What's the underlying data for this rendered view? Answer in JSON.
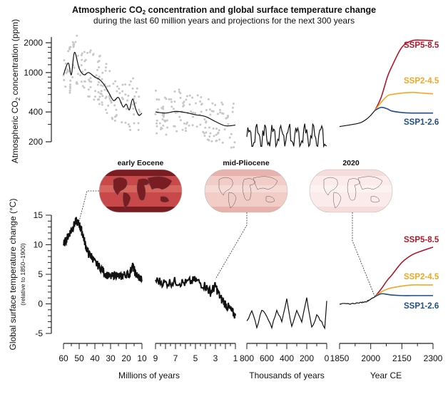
{
  "header": {
    "title_pre": "Atmospheric CO",
    "title_sub": "2",
    "title_post": " concentration and global surface temperature change",
    "subtitle": "during the last 60 million years and projections for the next 300 years"
  },
  "colors": {
    "ssp585": "#b2182b",
    "ssp245": "#f5a623",
    "ssp126": "#1f4e8c",
    "data_line": "#111111",
    "scatter": "#c8c8c8"
  },
  "maps": [
    {
      "label": "early Eocene",
      "palette": [
        "#7a1d22",
        "#c9484a",
        "#e07a6e"
      ]
    },
    {
      "label": "mid-Pliocene",
      "palette": [
        "#e8b2ad",
        "#f2cdc8",
        "#f8e3e0"
      ]
    },
    {
      "label": "2020",
      "palette": [
        "#f6dcda",
        "#fbeceb",
        "#fdf6f5"
      ]
    }
  ],
  "chart_data": [
    {
      "type": "line",
      "panel": "co2",
      "title": "Atmospheric CO2 concentration",
      "ylabel_pre": "Atmospheric CO",
      "ylabel_sub": "2",
      "ylabel_post": " concentration (ppm)",
      "yscale": "log",
      "ylim": [
        200,
        2300
      ],
      "yticks": [
        200,
        400,
        1000,
        2000
      ],
      "yticks_minor": [
        300,
        500,
        600,
        700,
        800,
        900,
        1200,
        1400,
        1600,
        1800
      ],
      "segments": [
        {
          "name": "Millions of years (60-10)",
          "x": [
            60,
            57,
            55,
            53,
            50,
            47,
            44,
            40,
            37,
            34,
            31,
            28,
            25,
            22,
            20,
            18,
            16,
            14,
            12,
            10
          ],
          "values": [
            950,
            1250,
            950,
            1600,
            1100,
            950,
            1000,
            900,
            850,
            750,
            620,
            520,
            560,
            450,
            480,
            420,
            540,
            430,
            370,
            390
          ]
        },
        {
          "name": "Millions of years (9-1)",
          "x": [
            9,
            8,
            7,
            6,
            5,
            4,
            3,
            2,
            1
          ],
          "values": [
            400,
            390,
            405,
            395,
            375,
            360,
            320,
            290,
            295
          ]
        },
        {
          "name": "Thousands of years (800-0)",
          "x": [
            800,
            700,
            600,
            500,
            400,
            300,
            200,
            100,
            0
          ],
          "values": [
            250,
            190,
            270,
            200,
            280,
            190,
            290,
            200,
            280
          ]
        },
        {
          "name": "Year CE historical",
          "x": [
            1850,
            1900,
            1950,
            1980,
            2000,
            2020
          ],
          "values": [
            285,
            296,
            311,
            339,
            370,
            414
          ]
        }
      ],
      "scenarios": [
        {
          "name": "SSP5-8.5",
          "x": [
            2020,
            2050,
            2080,
            2100,
            2150,
            2200,
            2250,
            2300
          ],
          "values": [
            414,
            560,
            900,
            1130,
            1800,
            2100,
            2120,
            2100
          ]
        },
        {
          "name": "SSP2-4.5",
          "x": [
            2020,
            2050,
            2080,
            2100,
            2150,
            2200,
            2250,
            2300
          ],
          "values": [
            414,
            500,
            580,
            600,
            620,
            630,
            620,
            610
          ]
        },
        {
          "name": "SSP1-2.6",
          "x": [
            2020,
            2050,
            2080,
            2100,
            2150,
            2200,
            2250,
            2300
          ],
          "values": [
            414,
            445,
            430,
            410,
            395,
            390,
            390,
            390
          ]
        }
      ]
    },
    {
      "type": "line",
      "panel": "temperature",
      "title": "Global surface temperature change",
      "ylabel": "Global surface temperature change (°C)",
      "ylabel2": "(relative to 1850–1900)",
      "ylim": [
        -5,
        15
      ],
      "yticks": [
        -5,
        0,
        5,
        10,
        15
      ],
      "segments": [
        {
          "name": "Millions of years (60-10)",
          "x": [
            60,
            58,
            56,
            54,
            52,
            50,
            48,
            46,
            44,
            42,
            40,
            36,
            33,
            30,
            27,
            24,
            21,
            18,
            16,
            14,
            12,
            10
          ],
          "values": [
            10,
            11,
            12,
            13,
            14,
            13.5,
            12,
            10,
            8.5,
            8,
            7,
            6,
            5,
            4.5,
            5,
            4.5,
            5,
            5,
            6.5,
            5,
            4.5,
            4
          ]
        },
        {
          "name": "Millions of years (9-1)",
          "x": [
            9,
            8,
            7,
            6,
            5,
            4,
            3.5,
            3,
            2.5,
            2,
            1.5,
            1
          ],
          "values": [
            4,
            3.5,
            3.8,
            3.5,
            4,
            3,
            2,
            3,
            1,
            0,
            -1,
            -2
          ]
        },
        {
          "name": "Thousands of years (800-0)",
          "x": [
            800,
            750,
            700,
            650,
            600,
            550,
            500,
            450,
            400,
            350,
            300,
            250,
            200,
            150,
            100,
            50,
            20,
            0
          ],
          "values": [
            -3,
            -1,
            -4,
            -1,
            -2,
            -4,
            -1,
            -3,
            1,
            -4,
            -1,
            -3,
            1,
            -4,
            -2,
            -3,
            -4,
            0.5
          ]
        },
        {
          "name": "Year CE historical",
          "x": [
            1850,
            1900,
            1950,
            1980,
            2000,
            2020
          ],
          "values": [
            0,
            0,
            0.2,
            0.4,
            0.8,
            1.2
          ]
        }
      ],
      "scenarios": [
        {
          "name": "SSP5-8.5",
          "x": [
            2020,
            2050,
            2080,
            2100,
            2150,
            2200,
            2250,
            2300
          ],
          "values": [
            1.2,
            2.5,
            4,
            4.8,
            7,
            8.3,
            9,
            9.6
          ]
        },
        {
          "name": "SSP2-4.5",
          "x": [
            2020,
            2050,
            2080,
            2100,
            2150,
            2200,
            2250,
            2300
          ],
          "values": [
            1.2,
            2,
            2.5,
            2.7,
            3,
            3.2,
            3.2,
            3.2
          ]
        },
        {
          "name": "SSP1-2.6",
          "x": [
            2020,
            2050,
            2080,
            2100,
            2150,
            2200,
            2250,
            2300
          ],
          "values": [
            1.2,
            1.7,
            1.6,
            1.5,
            1.4,
            1.4,
            1.4,
            1.4
          ]
        }
      ]
    }
  ],
  "x_axes": [
    {
      "label": "Millions of years",
      "range": [
        60,
        10
      ],
      "ticks": [
        60,
        50,
        40,
        30,
        20,
        10
      ]
    },
    {
      "label": "",
      "range": [
        9,
        1
      ],
      "ticks": [
        9,
        7,
        5,
        3,
        1
      ]
    },
    {
      "label": "Thousands of years",
      "range": [
        800,
        0
      ],
      "ticks": [
        800,
        600,
        400,
        200,
        0
      ]
    },
    {
      "label": "Year CE",
      "range": [
        1850,
        2300
      ],
      "ticks": [
        1850,
        2000,
        2150,
        2300
      ]
    }
  ]
}
